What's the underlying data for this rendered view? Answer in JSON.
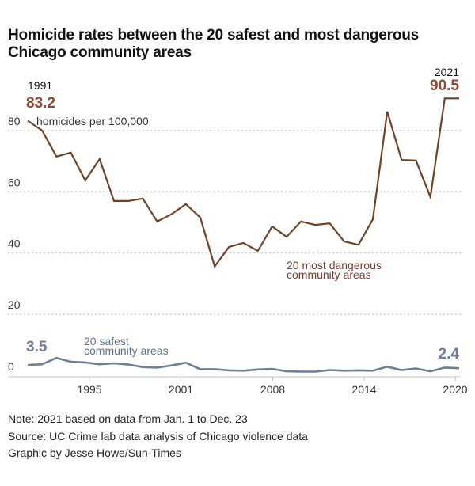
{
  "title": "Homicide rates between the 20 safest and most dangerous Chicago community areas",
  "notes": [
    "Note: 2021 based on data from Jan. 1 to Dec. 23",
    "Source: UC Crime lab data analysis of Chicago violence data",
    "Graphic by Jesse Howe/Sun-Times"
  ],
  "colors": {
    "dangerous": "#6e4327",
    "dangerous_label": "#7a3b2c",
    "dangerous_value": "#8a4a36",
    "safe": "#6e7e96",
    "safe_label": "#60738c",
    "grid": "#b5b5b5",
    "text": "#222222"
  },
  "chart_data": {
    "type": "line",
    "title": "Homicide rates between the 20 safest and most dangerous Chicago community areas",
    "ylabel": "homicides per 100,000",
    "xlabel": "",
    "ylim": [
      0,
      92
    ],
    "xlim": [
      1991,
      2021
    ],
    "grid": true,
    "y_ticks": [
      0,
      20,
      40,
      60,
      80
    ],
    "y_tick_labels": [
      "0",
      "20",
      "40",
      "60",
      "80"
    ],
    "x_ticks": [
      1995,
      2001,
      2008,
      2014,
      2020
    ],
    "x_tick_labels": [
      "1995",
      "2001",
      "2008",
      "2014",
      "2020"
    ],
    "x": [
      1991,
      1992,
      1993,
      1994,
      1995,
      1996,
      1997,
      1998,
      1999,
      2000,
      2001,
      2002,
      2003,
      2004,
      2005,
      2006,
      2007,
      2008,
      2009,
      2010,
      2011,
      2012,
      2013,
      2014,
      2015,
      2016,
      2017,
      2018,
      2019,
      2020,
      2021
    ],
    "series": [
      {
        "name": "20 most dangerous community areas",
        "label_lines": [
          "20 most dangerous",
          "community areas"
        ],
        "values": [
          83.2,
          80.0,
          71.5,
          72.8,
          63.7,
          70.7,
          57.0,
          57.0,
          57.8,
          50.3,
          52.7,
          56.0,
          51.6,
          35.6,
          42.0,
          43.3,
          40.7,
          48.7,
          45.3,
          50.3,
          49.2,
          49.7,
          43.8,
          42.7,
          51.0,
          86.2,
          70.4,
          70.2,
          58.3,
          90.5,
          90.5
        ]
      },
      {
        "name": "20 safest community areas",
        "label_lines": [
          "20 safest",
          "community areas"
        ],
        "values": [
          3.5,
          3.7,
          5.8,
          4.5,
          4.3,
          3.7,
          4.0,
          3.6,
          2.8,
          2.6,
          3.3,
          4.2,
          2.1,
          2.1,
          1.7,
          1.6,
          2.0,
          2.2,
          1.4,
          1.3,
          1.3,
          1.8,
          1.6,
          1.7,
          1.6,
          2.9,
          1.8,
          2.3,
          1.4,
          2.6,
          2.4
        ]
      }
    ],
    "annotations": [
      {
        "year_label": "1991",
        "value_label": "83.2",
        "series": "20 most dangerous community areas"
      },
      {
        "year_label": "2021",
        "value_label": "90.5",
        "series": "20 most dangerous community areas"
      },
      {
        "value_label": "3.5",
        "series": "20 safest community areas"
      },
      {
        "value_label": "2.4",
        "series": "20 safest community areas"
      }
    ]
  }
}
